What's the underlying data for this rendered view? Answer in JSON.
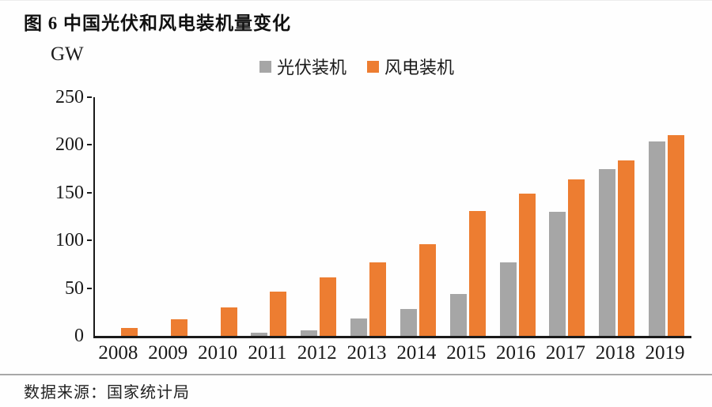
{
  "title": "图 6 中国光伏和风电装机量变化",
  "source": "数据来源：国家统计局",
  "colors": {
    "pv": "#A6A6A6",
    "wind": "#ED7D31",
    "axis": "#1a1a1a",
    "divider": "#a8a8a8"
  },
  "chart_data": {
    "type": "bar",
    "title": "图 6 中国光伏和风电装机量变化",
    "xlabel": "",
    "ylabel": "GW",
    "categories": [
      "2008",
      "2009",
      "2010",
      "2011",
      "2012",
      "2013",
      "2014",
      "2015",
      "2016",
      "2017",
      "2018",
      "2019"
    ],
    "series": [
      {
        "name": "光伏装机",
        "color": "#A6A6A6",
        "values": [
          0,
          0,
          0,
          3,
          6,
          18,
          28,
          44,
          77,
          130,
          175,
          204
        ]
      },
      {
        "name": "风电装机",
        "color": "#ED7D31",
        "values": [
          8,
          17,
          30,
          46,
          61,
          77,
          96,
          131,
          149,
          164,
          184,
          210
        ]
      }
    ],
    "ylim": [
      0,
      250
    ],
    "yticks": [
      0,
      50,
      100,
      150,
      200,
      250
    ],
    "legend_position": "top-center",
    "grid": false
  }
}
